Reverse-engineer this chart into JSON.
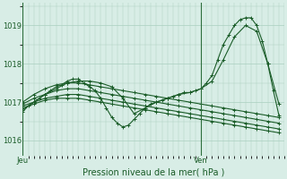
{
  "xlabel": "Pression niveau de la mer( hPa )",
  "bg_color": "#d8ede6",
  "grid_color": "#aacfbf",
  "line_color": "#1a5c28",
  "text_color": "#1a5c28",
  "axis_color": "#2d6e3c",
  "ylim": [
    1015.6,
    1019.6
  ],
  "xlim": [
    0,
    47
  ],
  "jeu_x": 0,
  "ven_x": 32,
  "yticks": [
    1016,
    1017,
    1018,
    1019
  ],
  "series": [
    {
      "x": [
        0,
        2,
        4,
        6,
        8,
        10,
        12,
        14,
        16,
        18,
        20,
        22,
        24,
        26,
        28,
        30,
        32,
        34,
        36,
        38,
        40,
        42,
        44,
        46
      ],
      "y": [
        1016.85,
        1016.95,
        1017.05,
        1017.1,
        1017.1,
        1017.1,
        1017.05,
        1017.0,
        1016.95,
        1016.9,
        1016.85,
        1016.8,
        1016.75,
        1016.7,
        1016.65,
        1016.6,
        1016.55,
        1016.5,
        1016.45,
        1016.4,
        1016.35,
        1016.3,
        1016.25,
        1016.2
      ]
    },
    {
      "x": [
        0,
        2,
        4,
        6,
        8,
        10,
        12,
        14,
        16,
        18,
        20,
        22,
        24,
        26,
        28,
        30,
        32,
        34,
        36,
        38,
        40,
        42,
        44,
        46
      ],
      "y": [
        1016.9,
        1017.0,
        1017.1,
        1017.15,
        1017.2,
        1017.2,
        1017.15,
        1017.1,
        1017.05,
        1017.0,
        1016.95,
        1016.9,
        1016.85,
        1016.8,
        1016.75,
        1016.7,
        1016.65,
        1016.6,
        1016.55,
        1016.5,
        1016.45,
        1016.4,
        1016.35,
        1016.3
      ]
    },
    {
      "x": [
        0,
        2,
        4,
        6,
        8,
        10,
        12,
        14,
        16,
        18,
        20,
        22,
        24,
        26,
        28,
        30,
        32,
        34,
        36,
        38,
        40,
        42,
        44,
        46
      ],
      "y": [
        1016.95,
        1017.1,
        1017.2,
        1017.3,
        1017.35,
        1017.35,
        1017.3,
        1017.25,
        1017.2,
        1017.15,
        1017.1,
        1017.05,
        1017.0,
        1016.95,
        1016.9,
        1016.85,
        1016.8,
        1016.75,
        1016.7,
        1016.65,
        1016.6,
        1016.55,
        1016.5,
        1016.45
      ]
    },
    {
      "x": [
        0,
        2,
        4,
        6,
        8,
        10,
        12,
        14,
        16,
        18,
        20,
        22,
        24,
        26,
        28,
        30,
        32,
        34,
        36,
        38,
        40,
        42,
        44,
        46
      ],
      "y": [
        1017.0,
        1017.2,
        1017.35,
        1017.45,
        1017.5,
        1017.5,
        1017.45,
        1017.4,
        1017.35,
        1017.3,
        1017.25,
        1017.2,
        1017.15,
        1017.1,
        1017.05,
        1017.0,
        1016.95,
        1016.9,
        1016.85,
        1016.8,
        1016.75,
        1016.7,
        1016.65,
        1016.6
      ]
    },
    {
      "x": [
        0,
        1,
        2,
        3,
        4,
        5,
        6,
        7,
        8,
        9,
        10,
        11,
        12,
        13,
        14,
        15,
        16,
        17,
        18,
        19,
        20,
        21,
        22,
        23,
        24,
        25,
        26,
        27,
        28,
        29,
        30,
        31,
        32,
        33,
        34,
        35,
        36,
        37,
        38,
        39,
        40,
        41,
        42,
        43,
        44,
        45,
        46
      ],
      "y": [
        1016.75,
        1016.9,
        1017.0,
        1017.1,
        1017.2,
        1017.3,
        1017.4,
        1017.45,
        1017.55,
        1017.6,
        1017.6,
        1017.5,
        1017.4,
        1017.3,
        1017.1,
        1016.85,
        1016.6,
        1016.45,
        1016.35,
        1016.4,
        1016.55,
        1016.7,
        1016.85,
        1016.95,
        1017.0,
        1017.05,
        1017.1,
        1017.15,
        1017.2,
        1017.25,
        1017.25,
        1017.3,
        1017.35,
        1017.5,
        1017.7,
        1018.1,
        1018.5,
        1018.75,
        1019.0,
        1019.15,
        1019.2,
        1019.2,
        1019.0,
        1018.6,
        1018.0,
        1017.3,
        1016.65
      ]
    },
    {
      "x": [
        0,
        2,
        4,
        6,
        8,
        10,
        12,
        14,
        16,
        18,
        20,
        22,
        24,
        26,
        28,
        30,
        32,
        34,
        36,
        38,
        40,
        42,
        44,
        46
      ],
      "y": [
        1016.8,
        1017.0,
        1017.2,
        1017.35,
        1017.5,
        1017.55,
        1017.55,
        1017.5,
        1017.4,
        1017.1,
        1016.7,
        1016.85,
        1017.0,
        1017.1,
        1017.2,
        1017.25,
        1017.35,
        1017.55,
        1018.1,
        1018.7,
        1019.0,
        1018.85,
        1018.0,
        1016.95
      ]
    }
  ]
}
